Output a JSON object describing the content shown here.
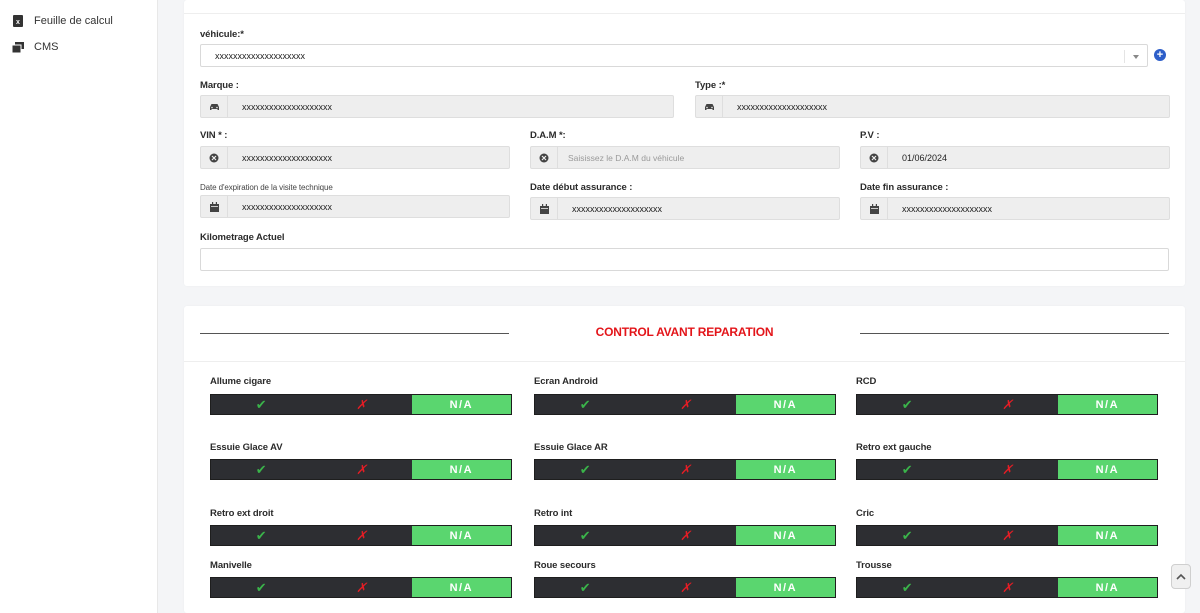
{
  "sidebar": {
    "items": [
      {
        "label": "Feuille de calcul",
        "icon": "spreadsheet-icon"
      },
      {
        "label": "CMS",
        "icon": "cms-icon"
      }
    ]
  },
  "vehicle": {
    "vehicle_label": "véhicule:*",
    "vehicle_value": "xxxxxxxxxxxxxxxxxxxx",
    "marque_label": "Marque :",
    "marque_value": "xxxxxxxxxxxxxxxxxxxx",
    "type_label": "Type :*",
    "type_value": "xxxxxxxxxxxxxxxxxxxx",
    "vin_label": "VIN * :",
    "vin_value": "xxxxxxxxxxxxxxxxxxxx",
    "dam_label": "D.A.M *:",
    "dam_placeholder": "Saisissez le D.A.M du véhicule",
    "pv_label": "P.V :",
    "pv_value": "01/06/2024",
    "expiration_label": "Date d'expiration de la visite technique",
    "expiration_value": "xxxxxxxxxxxxxxxxxxxx",
    "debut_label": "Date début assurance :",
    "debut_value": "xxxxxxxxxxxxxxxxxxxx",
    "fin_label": "Date fin assurance :",
    "fin_value": "xxxxxxxxxxxxxxxxxxxx",
    "km_label": "Kilometrage Actuel",
    "km_value": ""
  },
  "control": {
    "title": "CONTROL AVANT REPARATION",
    "ok_symbol": "✔",
    "ko_symbol": "✗",
    "na_label": "N/A",
    "items": [
      {
        "label": "Allume cigare",
        "state": "N/A"
      },
      {
        "label": "Ecran Android",
        "state": "N/A"
      },
      {
        "label": "RCD",
        "state": "N/A"
      },
      {
        "label": "Essuie Glace AV",
        "state": "N/A"
      },
      {
        "label": "Essuie Glace AR",
        "state": "N/A"
      },
      {
        "label": "Retro ext gauche",
        "state": "N/A"
      },
      {
        "label": "Retro ext droit",
        "state": "N/A"
      },
      {
        "label": "Retro int",
        "state": "N/A"
      },
      {
        "label": "Cric",
        "state": "N/A"
      },
      {
        "label": "Manivelle",
        "state": "N/A"
      },
      {
        "label": "Roue secours",
        "state": "N/A"
      },
      {
        "label": "Trousse",
        "state": "N/A"
      }
    ]
  },
  "colors": {
    "accent_red": "#e3151a",
    "na_green": "#5ad66f",
    "ok_green": "#3ab44a",
    "ko_red": "#e41d25",
    "dark_segment": "#2d2e32",
    "add_button_blue": "#2d5ec9"
  }
}
